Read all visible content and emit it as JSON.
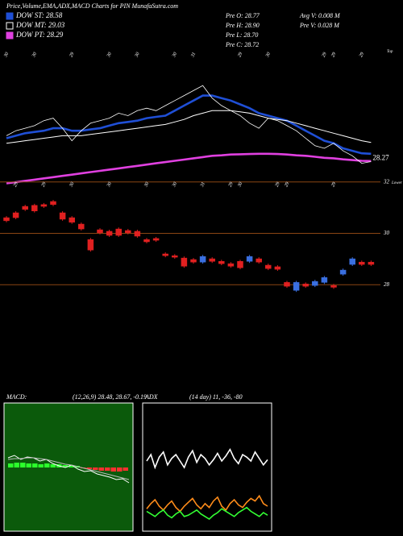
{
  "chart_data": [
    {
      "type": "line",
      "title": "Price,Volume,EMA,ADX,MACD Charts for PIN  MunafaSutra.com",
      "info": [
        "Pre  O: 28.77",
        "Pre  H: 28.90",
        "Pre  L: 28.70",
        "Pre  C: 28.72",
        "Avg V: 0.008 M",
        "Pre  V: 0.028 M"
      ],
      "annotation": "Top",
      "categories": [
        "30",
        null,
        null,
        "30",
        null,
        null,
        null,
        "29",
        null,
        null,
        null,
        "30",
        null,
        null,
        "30",
        null,
        null,
        null,
        "30",
        null,
        "31",
        null,
        null,
        null,
        null,
        "29",
        null,
        null,
        "30",
        null,
        null,
        null,
        null,
        null,
        "29",
        "29",
        null,
        null,
        "29",
        null
      ],
      "color": "#ffffff",
      "values": [
        29.3,
        29.5,
        29.6,
        29.7,
        29.9,
        30.0,
        29.6,
        29.1,
        29.5,
        29.8,
        29.9,
        30.0,
        30.2,
        30.1,
        30.3,
        30.4,
        30.3,
        30.5,
        30.7,
        30.9,
        31.1,
        31.3,
        30.8,
        30.5,
        30.3,
        30.1,
        29.8,
        29.6,
        30.0,
        29.9,
        29.7,
        29.5,
        29.2,
        28.9,
        28.8,
        29.0,
        28.7,
        28.5,
        28.2,
        28.27
      ],
      "series": [
        {
          "name": "DOW ST: 28.58",
          "color": "#1f4fd6",
          "values": [
            29.2,
            29.3,
            29.4,
            29.45,
            29.5,
            29.6,
            29.6,
            29.5,
            29.5,
            29.55,
            29.6,
            29.7,
            29.8,
            29.85,
            29.9,
            30.0,
            30.05,
            30.1,
            30.3,
            30.5,
            30.7,
            30.9,
            30.9,
            30.8,
            30.7,
            30.55,
            30.4,
            30.2,
            30.1,
            30.0,
            29.9,
            29.7,
            29.5,
            29.3,
            29.1,
            29.0,
            28.8,
            28.7,
            28.6,
            28.58
          ]
        },
        {
          "name": "DOW MT: 29.03",
          "color": "#ffffff",
          "values": [
            29.0,
            29.05,
            29.1,
            29.15,
            29.2,
            29.25,
            29.3,
            29.3,
            29.3,
            29.35,
            29.4,
            29.45,
            29.5,
            29.55,
            29.6,
            29.65,
            29.7,
            29.75,
            29.85,
            29.95,
            30.1,
            30.2,
            30.3,
            30.3,
            30.3,
            30.25,
            30.2,
            30.1,
            30.0,
            29.95,
            29.9,
            29.8,
            29.7,
            29.6,
            29.5,
            29.4,
            29.3,
            29.2,
            29.1,
            29.03
          ]
        },
        {
          "name": "DOW PT: 28.29",
          "color": "#e040e0",
          "values": [
            27.4,
            27.45,
            27.5,
            27.55,
            27.6,
            27.65,
            27.7,
            27.75,
            27.8,
            27.85,
            27.9,
            27.95,
            28.0,
            28.05,
            28.1,
            28.15,
            28.2,
            28.25,
            28.3,
            28.35,
            28.4,
            28.45,
            28.5,
            28.52,
            28.55,
            28.56,
            28.57,
            28.58,
            28.58,
            28.57,
            28.55,
            28.52,
            28.5,
            28.46,
            28.42,
            28.4,
            28.36,
            28.33,
            28.3,
            28.29
          ]
        }
      ],
      "ylim": [
        27.0,
        32.3
      ]
    },
    {
      "type": "candlestick",
      "annotation": "Lower",
      "categories": [
        null,
        "29",
        null,
        null,
        "29",
        null,
        null,
        "30",
        null,
        null,
        null,
        "30",
        null,
        null,
        null,
        "30",
        null,
        null,
        "30",
        null,
        null,
        "31",
        null,
        null,
        "29",
        "30",
        null,
        null,
        null,
        "29",
        "29",
        null,
        null,
        null,
        null,
        "29",
        null,
        null,
        null,
        null
      ],
      "open": [
        30.61,
        30.8,
        31.05,
        31.09,
        31.12,
        31.24,
        30.8,
        30.61,
        30.36,
        29.76,
        30.14,
        30.08,
        30.17,
        30.11,
        30.08,
        29.76,
        29.8,
        29.2,
        29.13,
        29.04,
        28.98,
        28.88,
        29.01,
        28.91,
        28.82,
        28.91,
        28.91,
        29.01,
        28.76,
        28.7,
        28.09,
        27.78,
        28.03,
        27.97,
        28.09,
        27.97,
        28.41,
        28.79,
        28.88,
        28.88
      ],
      "high": [
        30.67,
        30.86,
        31.11,
        31.15,
        31.18,
        31.3,
        30.86,
        30.67,
        30.42,
        29.82,
        30.2,
        30.14,
        30.23,
        30.17,
        30.14,
        29.82,
        29.86,
        29.26,
        29.19,
        29.1,
        29.04,
        29.16,
        29.07,
        28.97,
        28.88,
        28.97,
        29.16,
        29.07,
        28.82,
        28.76,
        28.15,
        28.15,
        28.09,
        28.19,
        28.34,
        28.03,
        28.63,
        29.07,
        28.94,
        28.94
      ],
      "low": [
        30.43,
        30.55,
        30.87,
        30.81,
        30.99,
        31.06,
        30.49,
        30.37,
        30.11,
        29.29,
        29.96,
        29.86,
        29.86,
        29.96,
        29.83,
        29.61,
        29.67,
        29.07,
        29.01,
        28.66,
        28.82,
        28.82,
        28.85,
        28.76,
        28.66,
        28.6,
        28.85,
        28.82,
        28.57,
        28.54,
        27.88,
        27.72,
        27.88,
        27.91,
        28.03,
        27.84,
        28.35,
        28.73,
        28.73,
        28.73
      ],
      "close": [
        30.49,
        30.61,
        30.93,
        30.87,
        31.05,
        31.12,
        30.55,
        30.43,
        30.17,
        29.35,
        30.02,
        29.92,
        29.92,
        30.02,
        29.89,
        29.67,
        29.73,
        29.13,
        29.07,
        28.72,
        28.88,
        29.1,
        28.91,
        28.82,
        28.72,
        28.66,
        29.1,
        28.88,
        28.63,
        28.6,
        27.94,
        28.09,
        27.94,
        28.13,
        28.28,
        27.9,
        28.57,
        29.01,
        28.79,
        28.79
      ],
      "up_color": "#3a6fe0",
      "down_color": "#e02020",
      "ylim": [
        27.6,
        32.4
      ],
      "yticks": [
        32,
        30,
        28
      ],
      "grid": true,
      "grid_color": "#8b4513"
    },
    {
      "type": "macd",
      "title": "MACD:",
      "subtitle": "(12,26,9) 28.48, 28.67, -0.19",
      "background": "#0b5a0b",
      "series": [
        {
          "color": "#ffffff",
          "values": [
            0.12,
            0.15,
            0.1,
            0.13,
            0.12,
            0.08,
            0.1,
            0.05,
            0.02,
            0.0,
            0.03,
            -0.02,
            -0.05,
            -0.04,
            -0.08,
            -0.1,
            -0.12,
            -0.15,
            -0.14,
            -0.19
          ]
        },
        {
          "color": "#bbbbbb",
          "values": [
            0.1,
            0.11,
            0.11,
            0.12,
            0.12,
            0.11,
            0.1,
            0.08,
            0.06,
            0.04,
            0.03,
            0.01,
            -0.01,
            -0.03,
            -0.05,
            -0.07,
            -0.09,
            -0.11,
            -0.13,
            -0.15
          ]
        }
      ],
      "histogram": [
        0.05,
        0.06,
        0.06,
        0.05,
        0.05,
        0.04,
        0.05,
        0.04,
        0.04,
        0.03,
        0.03,
        0.02,
        -0.01,
        -0.02,
        -0.03,
        -0.04,
        -0.04,
        -0.05,
        -0.05,
        -0.04
      ],
      "up_color": "#2bff2b",
      "down_color": "#ff3030",
      "ylim": [
        -0.8,
        0.8
      ]
    },
    {
      "type": "adx",
      "title": "ADX",
      "subtitle": "(14 day) 11, -36, -80",
      "background": "#000000",
      "series": [
        {
          "color": "#ffffff",
          "values": [
            55,
            60,
            50,
            58,
            62,
            52,
            57,
            60,
            55,
            50,
            58,
            63,
            54,
            60,
            57,
            52,
            56,
            61,
            55,
            59,
            64,
            57,
            53,
            60,
            58,
            55,
            62,
            57,
            52,
            56
          ]
        },
        {
          "color": "#ff8c1a",
          "values": [
            18,
            22,
            25,
            20,
            17,
            21,
            24,
            19,
            16,
            20,
            23,
            26,
            21,
            18,
            22,
            19,
            24,
            27,
            20,
            17,
            22,
            25,
            21,
            19,
            23,
            26,
            24,
            28,
            22,
            20
          ]
        },
        {
          "color": "#33ff33",
          "values": [
            16,
            14,
            12,
            15,
            17,
            13,
            11,
            14,
            16,
            12,
            13,
            15,
            17,
            14,
            12,
            10,
            13,
            15,
            18,
            16,
            14,
            12,
            15,
            17,
            19,
            16,
            14,
            12,
            15,
            13
          ]
        }
      ],
      "ylim": [
        0,
        100
      ]
    }
  ]
}
